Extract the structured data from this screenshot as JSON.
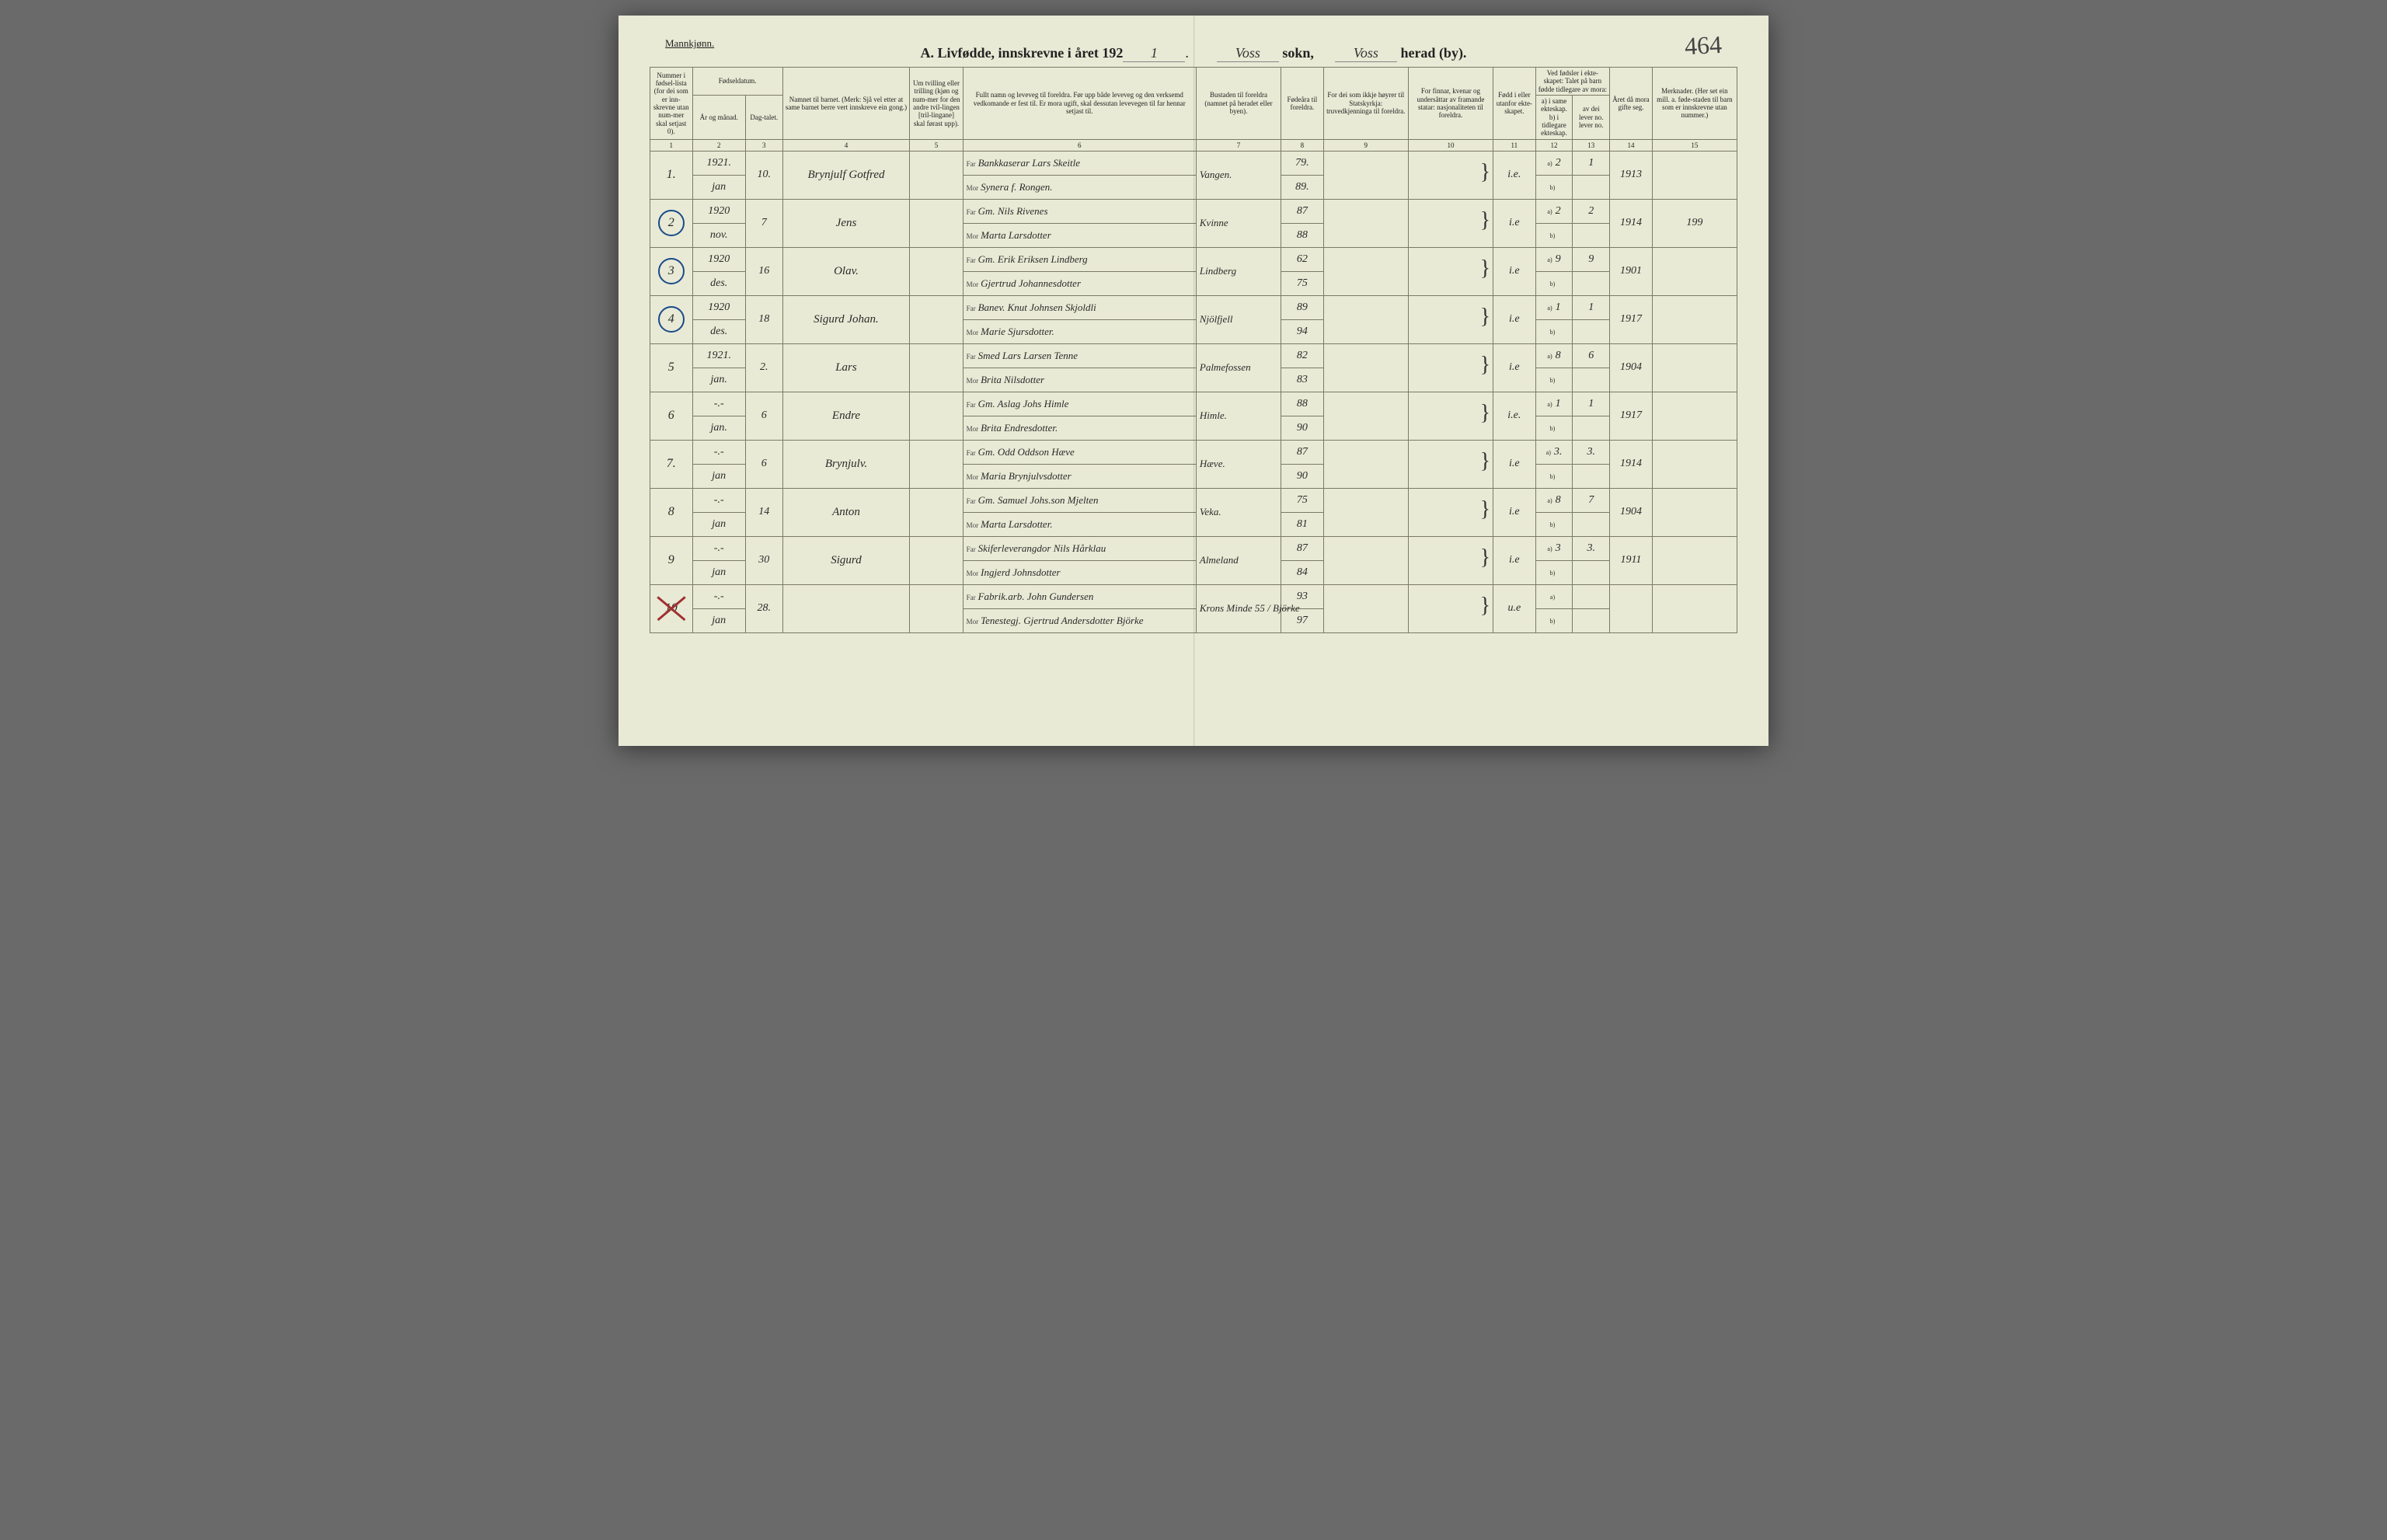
{
  "colors": {
    "page_bg": "#e8ead5",
    "border": "#7a7a66",
    "text": "#222222",
    "handwriting": "#2a2a2a",
    "circle": "#1a4a8a",
    "cross": "#a03030",
    "outer_bg": "#6a6a6a"
  },
  "typography": {
    "header_fontsize_pt": 9,
    "handwriting_fontsize_pt": 14,
    "title_fontsize_pt": 18
  },
  "header": {
    "gender": "Mannkjønn.",
    "title_prefix": "A.   Livfødde, innskrevne i året 192",
    "year_suffix": "1",
    "sokn_label": "sokn,",
    "sokn_value": "Voss",
    "herad_label": "herad (by).",
    "herad_value": "Voss",
    "page_number": "464"
  },
  "columns": {
    "c1": "Nummer i fødsel-lista (for dei som er inn-skrevne utan num-mer skal setjast 0).",
    "c2_group": "Fødseldatum.",
    "c2a": "År og månad.",
    "c2b": "Dag-talet.",
    "c4": "Namnet til barnet.\n(Merk: Sjå vel etter at same barnet berre vert innskreve ein gong.)",
    "c5": "Um tvilling eller trilling (kjøn og num-mer for den andre tvil-lingen [tril-lingane] skal førast upp).",
    "c6": "Fullt namn og leveveg til foreldra.\nFør upp både leveveg og den verksemd vedkomande er fest til. Er mora ugift, skal dessutan levevegen til far hennar setjast til.",
    "c7": "Bustaden til foreldra (namnet på heradet eller byen).",
    "c8": "Fødeåra til foreldra.",
    "c9": "For dei som ikkje høyrer til Statskyrkja: truvedkjenninga til foreldra.",
    "c10": "For finnar, kvenar og undersåttar av framande statar: nasjonaliteten til foreldra.",
    "c11": "Fødd i eller utanfor ekte-skapet.",
    "c12_group": "Ved fødsler i ekte-skapet: Talet på barn fødde tidlegare av mora:",
    "c12a": "a) i same ekteskap.\nb) i tidlegare ekteskap.",
    "c12b": "av dei lever no.\nlever no.",
    "c14": "Året då mora gifte seg.",
    "c15": "Merknader.\n(Her set ein mill. a. føde-staden til barn som er innskrevne utan nummer.)"
  },
  "column_numbers": [
    "1",
    "2",
    "3",
    "4",
    "5",
    "6",
    "7",
    "8",
    "9",
    "10",
    "11",
    "12",
    "13",
    "14",
    "15"
  ],
  "column_widths_pct": [
    4,
    5,
    3.5,
    12,
    5,
    22,
    8,
    4,
    8,
    8,
    4,
    3.5,
    3.5,
    4,
    8
  ],
  "rows": [
    {
      "seq": "1.",
      "circled": false,
      "crossed": false,
      "year": "1921.",
      "month": "jan",
      "day": "10.",
      "name": "Brynjulf Gotfred",
      "far": "Bankkaserar Lars Skeitle",
      "mor": "Synera f. Rongen.",
      "place": "Vangen.",
      "far_year": "79.",
      "mor_year": "89.",
      "c11": "i.e.",
      "c12a": "2",
      "c12b": "1",
      "c14": "1913",
      "notes": ""
    },
    {
      "seq": "2",
      "circled": true,
      "crossed": false,
      "year": "1920",
      "month": "nov.",
      "day": "7",
      "name": "Jens",
      "far": "Gm. Nils Rivenes",
      "mor": "Marta Larsdotter",
      "place": "Kvinne",
      "far_year": "87",
      "mor_year": "88",
      "c11": "i.e",
      "c12a": "2",
      "c12b": "2",
      "c14": "1914",
      "notes": "199"
    },
    {
      "seq": "3",
      "circled": true,
      "crossed": false,
      "year": "1920",
      "month": "des.",
      "day": "16",
      "name": "Olav.",
      "far": "Gm. Erik Eriksen Lindberg",
      "mor": "Gjertrud Johannesdotter",
      "place": "Lindberg",
      "far_year": "62",
      "mor_year": "75",
      "c11": "i.e",
      "c12a": "9",
      "c12b": "9",
      "c14": "1901",
      "notes": ""
    },
    {
      "seq": "4",
      "circled": true,
      "crossed": false,
      "year": "1920",
      "month": "des.",
      "day": "18",
      "name": "Sigurd Johan.",
      "far": "Banev. Knut Johnsen Skjoldli",
      "mor": "Marie Sjursdotter.",
      "place": "Njölfjell",
      "far_year": "89",
      "mor_year": "94",
      "c11": "i.e",
      "c12a": "1",
      "c12b": "1",
      "c14": "1917",
      "notes": ""
    },
    {
      "seq": "5",
      "circled": false,
      "crossed": false,
      "year": "1921.",
      "month": "jan.",
      "day": "2.",
      "name": "Lars",
      "far": "Smed Lars Larsen Tenne",
      "mor": "Brita Nilsdotter",
      "place": "Palmefossen",
      "far_year": "82",
      "mor_year": "83",
      "c11": "i.e",
      "c12a": "8",
      "c12b": "6",
      "c14": "1904",
      "notes": ""
    },
    {
      "seq": "6",
      "circled": false,
      "crossed": false,
      "year": "-.-",
      "month": "jan.",
      "day": "6",
      "name": "Endre",
      "far": "Gm. Aslag Johs Himle",
      "mor": "Brita Endresdotter.",
      "place": "Himle.",
      "far_year": "88",
      "mor_year": "90",
      "c11": "i.e.",
      "c12a": "1",
      "c12b": "1",
      "c14": "1917",
      "notes": ""
    },
    {
      "seq": "7.",
      "circled": false,
      "crossed": false,
      "year": "-.-",
      "month": "jan",
      "day": "6",
      "name": "Brynjulv.",
      "far": "Gm. Odd Oddson Hæve",
      "mor": "Maria Brynjulvsdotter",
      "place": "Hæve.",
      "far_year": "87",
      "mor_year": "90",
      "c11": "i.e",
      "c12a": "3.",
      "c12b": "3.",
      "c14": "1914",
      "notes": ""
    },
    {
      "seq": "8",
      "circled": false,
      "crossed": false,
      "year": "-.-",
      "month": "jan",
      "day": "14",
      "name": "Anton",
      "far": "Gm. Samuel Johs.son Mjelten",
      "mor": "Marta Larsdotter.",
      "place": "Veka.",
      "far_year": "75",
      "mor_year": "81",
      "c11": "i.e",
      "c12a": "8",
      "c12b": "7",
      "c14": "1904",
      "notes": ""
    },
    {
      "seq": "9",
      "circled": false,
      "crossed": false,
      "year": "-.-",
      "month": "jan",
      "day": "30",
      "name": "Sigurd",
      "far": "Skiferleverangdor Nils Hårklau",
      "mor": "Ingjerd Johnsdotter",
      "place": "Almeland",
      "far_year": "87",
      "mor_year": "84",
      "c11": "i.e",
      "c12a": "3",
      "c12b": "3.",
      "c14": "1911",
      "notes": ""
    },
    {
      "seq": "10",
      "circled": false,
      "crossed": true,
      "year": "-.-",
      "month": "jan",
      "day": "28.",
      "name": "",
      "far": "Fabrik.arb. John Gundersen",
      "mor": "Tenestegj. Gjertrud Andersdotter Björke",
      "place": "Krons Minde 55 / Björke",
      "far_year": "93",
      "mor_year": "97",
      "c11": "u.e",
      "c12a": "",
      "c12b": "",
      "c14": "",
      "notes": ""
    }
  ]
}
